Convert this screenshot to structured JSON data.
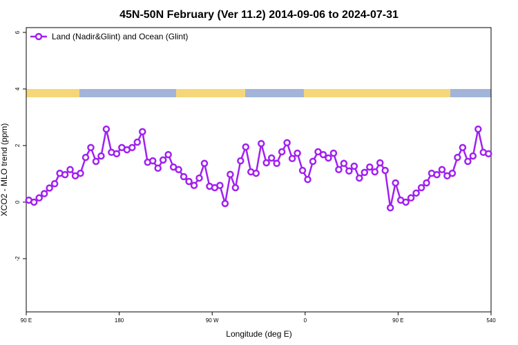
{
  "chart_data": {
    "type": "line",
    "title": "45N-50N February (Ver 11.2)   2014-09-06 to 2024-07-31",
    "xlabel": "Longitude (deg E)",
    "ylabel": "XCO2 - MLO trend (ppm)",
    "x": [
      92.5,
      97.5,
      102.5,
      107.5,
      112.5,
      117.5,
      122.5,
      127.5,
      132.5,
      137.5,
      142.5,
      147.5,
      152.5,
      157.5,
      162.5,
      167.5,
      172.5,
      177.5,
      182.5,
      187.5,
      192.5,
      197.5,
      202.5,
      207.5,
      212.5,
      217.5,
      222.5,
      227.5,
      232.5,
      237.5,
      242.5,
      247.5,
      252.5,
      257.5,
      262.5,
      267.5,
      272.5,
      277.5,
      282.5,
      287.5,
      292.5,
      297.5,
      302.5,
      307.5,
      312.5,
      317.5,
      322.5,
      327.5,
      332.5,
      337.5,
      342.5,
      347.5,
      352.5,
      357.5,
      362.5,
      367.5,
      372.5,
      377.5,
      382.5,
      387.5,
      392.5,
      397.5,
      402.5,
      407.5,
      412.5,
      417.5,
      422.5,
      427.5,
      432.5,
      437.5,
      442.5,
      447.5,
      452.5,
      457.5,
      462.5,
      467.5,
      472.5,
      477.5,
      482.5,
      487.5,
      492.5,
      497.5,
      502.5,
      507.5,
      512.5,
      517.5,
      522.5,
      527.5,
      532.5,
      537.5
    ],
    "series": [
      {
        "name": "Land (Nadir&Glint) and Ocean (Glint)",
        "color": "#a020f0",
        "values": [
          0.07,
          0.0,
          0.15,
          0.3,
          0.5,
          0.65,
          1.02,
          0.97,
          1.15,
          0.93,
          1.02,
          1.58,
          1.93,
          1.44,
          1.63,
          2.58,
          1.76,
          1.71,
          1.93,
          1.85,
          1.93,
          2.12,
          2.49,
          1.41,
          1.46,
          1.2,
          1.49,
          1.68,
          1.24,
          1.15,
          0.9,
          0.73,
          0.59,
          0.85,
          1.37,
          0.56,
          0.51,
          0.59,
          -0.05,
          0.98,
          0.51,
          1.46,
          1.95,
          1.07,
          1.02,
          2.07,
          1.39,
          1.56,
          1.37,
          1.78,
          2.1,
          1.54,
          1.73,
          1.12,
          0.8,
          1.44,
          1.78,
          1.68,
          1.56,
          1.73,
          1.15,
          1.37,
          1.1,
          1.27,
          0.85,
          1.05,
          1.24,
          1.07,
          1.39,
          1.12,
          -0.2,
          0.68,
          0.07,
          0.0,
          0.15,
          0.32,
          0.51,
          0.68,
          1.02,
          0.97,
          1.15,
          0.93,
          1.02,
          1.58,
          1.93,
          1.44,
          1.63,
          2.58,
          1.76,
          1.71
        ]
      }
    ],
    "xlim": [
      90,
      540
    ],
    "xticks": [
      {
        "value": 90,
        "label": "90 E"
      },
      180,
      {
        "value": 270,
        "label": "90 W"
      },
      {
        "value": 360,
        "label": "0"
      },
      {
        "value": 450,
        "label": "90 E"
      },
      540
    ],
    "ylim": [
      -3.88,
      6.17
    ],
    "yticks": [
      -2,
      0,
      2,
      4,
      6
    ],
    "legend": "top-left"
  }
}
